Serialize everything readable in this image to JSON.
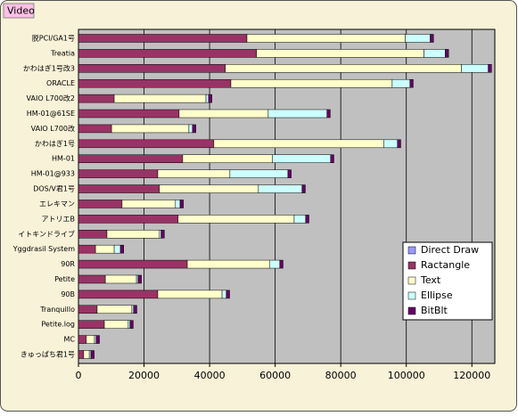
{
  "chart_data": {
    "type": "stacked_barh",
    "title": "Video",
    "categories": [
      "脱PCI/GA1号",
      "Treatia",
      "かわはぎ1号改3",
      "ORACLE",
      "VAIO L700改2",
      "HM-01@61SE",
      "VAIO L700改",
      "かわはぎ1号",
      "HM-01",
      "HM-01@933",
      "DOS/V君1号",
      "エレキマン",
      "アトリエB",
      "イトキンドライブ",
      "Yggdrasil System",
      "90R",
      "Petite",
      "90B",
      "Tranquillo",
      "Petite.log",
      "MC",
      "きゅっぱち君1号"
    ],
    "series": [
      {
        "name": "Direct Draw",
        "color": "#9999ff",
        "values": [
          0,
          0,
          0,
          0,
          0,
          0,
          0,
          0,
          0,
          0,
          0,
          0,
          0,
          0,
          0,
          0,
          0,
          0,
          0,
          0,
          0,
          0
        ]
      },
      {
        "name": "Ractangle",
        "color": "#993366",
        "values": [
          51400,
          54300,
          44800,
          46500,
          10900,
          30700,
          10100,
          41300,
          31800,
          24200,
          24700,
          13300,
          30400,
          8700,
          5200,
          33200,
          8200,
          24200,
          5700,
          7900,
          2400,
          1600
        ]
      },
      {
        "name": "Text",
        "color": "#ffffcc",
        "values": [
          48300,
          51100,
          72000,
          49200,
          28000,
          27200,
          23600,
          51900,
          27400,
          22000,
          30200,
          16300,
          35400,
          16000,
          5700,
          25200,
          9500,
          19600,
          10600,
          7300,
          2500,
          1700
        ]
      },
      {
        "name": "Ellipse",
        "color": "#ccffff",
        "values": [
          7600,
          6500,
          8200,
          5400,
          800,
          17900,
          1100,
          4100,
          17700,
          17700,
          13300,
          1400,
          3500,
          500,
          1900,
          3000,
          500,
          1300,
          500,
          500,
          500,
          500
        ]
      },
      {
        "name": "BitBlt",
        "color": "#660066",
        "values": [
          1000,
          1000,
          1000,
          1000,
          1000,
          1000,
          1000,
          1000,
          1000,
          1000,
          1000,
          1000,
          1000,
          1000,
          1000,
          1000,
          1000,
          1000,
          1000,
          1000,
          1000,
          1000
        ]
      }
    ],
    "xlim": [
      0,
      127000
    ],
    "xticks": [
      0,
      20000,
      40000,
      60000,
      80000,
      100000,
      120000
    ],
    "grid": true,
    "legend": "right"
  }
}
